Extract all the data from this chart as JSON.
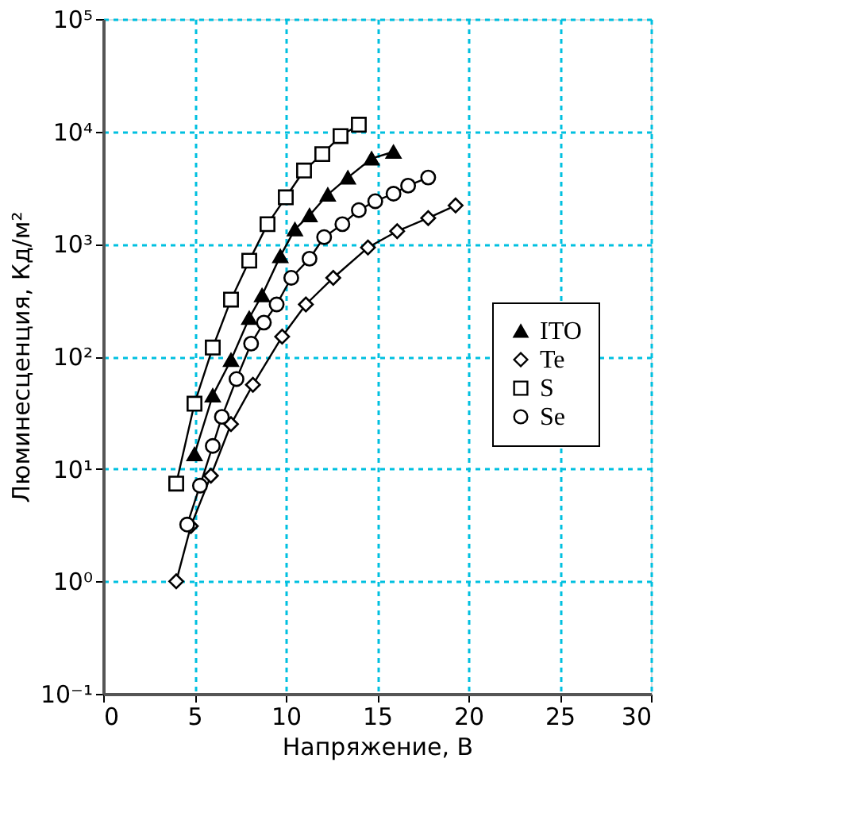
{
  "chart_data": {
    "type": "line",
    "xlabel": "Напряжение, В",
    "ylabel": "Люминесценция, Кд/м²",
    "log": "y",
    "grid": true,
    "legend": "right",
    "line_style": "solid",
    "xlim": [
      0,
      30
    ],
    "xticks": [
      0,
      5,
      10,
      15,
      20,
      25,
      30
    ],
    "ylim": [
      0.1,
      100000
    ],
    "yticks": [
      {
        "value": 0.1,
        "label": "10⁻¹"
      },
      {
        "value": 1,
        "label": "10⁰"
      },
      {
        "value": 10,
        "label": "10¹"
      },
      {
        "value": 100,
        "label": "10²"
      },
      {
        "value": 1000,
        "label": "10³"
      },
      {
        "value": 10000,
        "label": "10⁴"
      },
      {
        "value": 100000,
        "label": "10⁵"
      }
    ],
    "series": [
      {
        "name": "ITO",
        "color": "#000000",
        "marker": "triangle",
        "x": [
          5,
          6,
          7,
          8,
          8.7,
          9.7,
          10.5,
          11.3,
          12.3,
          13.4,
          14.7,
          15.9
        ],
        "values": [
          13.5,
          45,
          93,
          220,
          350,
          780,
          1350,
          1800,
          2750,
          3900,
          5750,
          6600
        ]
      },
      {
        "name": "Te",
        "color": "#000000",
        "marker": "diamond",
        "x": [
          4,
          4.8,
          5.9,
          7,
          8.2,
          9.8,
          11.1,
          12.6,
          14.5,
          16.1,
          17.8,
          19.3
        ],
        "values": [
          1.0,
          3.1,
          8.7,
          25,
          56,
          150,
          290,
          500,
          930,
          1300,
          1700,
          2200
        ]
      },
      {
        "name": "S",
        "color": "#000000",
        "marker": "square",
        "x": [
          4,
          5,
          6,
          7,
          8,
          9,
          10,
          11,
          12,
          13,
          14
        ],
        "values": [
          7.4,
          38,
          120,
          320,
          710,
          1500,
          2600,
          4500,
          6300,
          9100,
          11500
        ]
      },
      {
        "name": "Se",
        "color": "#000000",
        "marker": "circle",
        "x": [
          4.6,
          5.3,
          6,
          6.5,
          7.3,
          8.1,
          8.8,
          9.5,
          10.3,
          11.3,
          12.1,
          13.1,
          14,
          14.9,
          15.9,
          16.7,
          17.8
        ],
        "values": [
          3.2,
          7.1,
          16,
          29,
          63,
          130,
          200,
          290,
          500,
          740,
          1150,
          1500,
          2000,
          2400,
          2800,
          3300,
          3900
        ]
      }
    ]
  }
}
